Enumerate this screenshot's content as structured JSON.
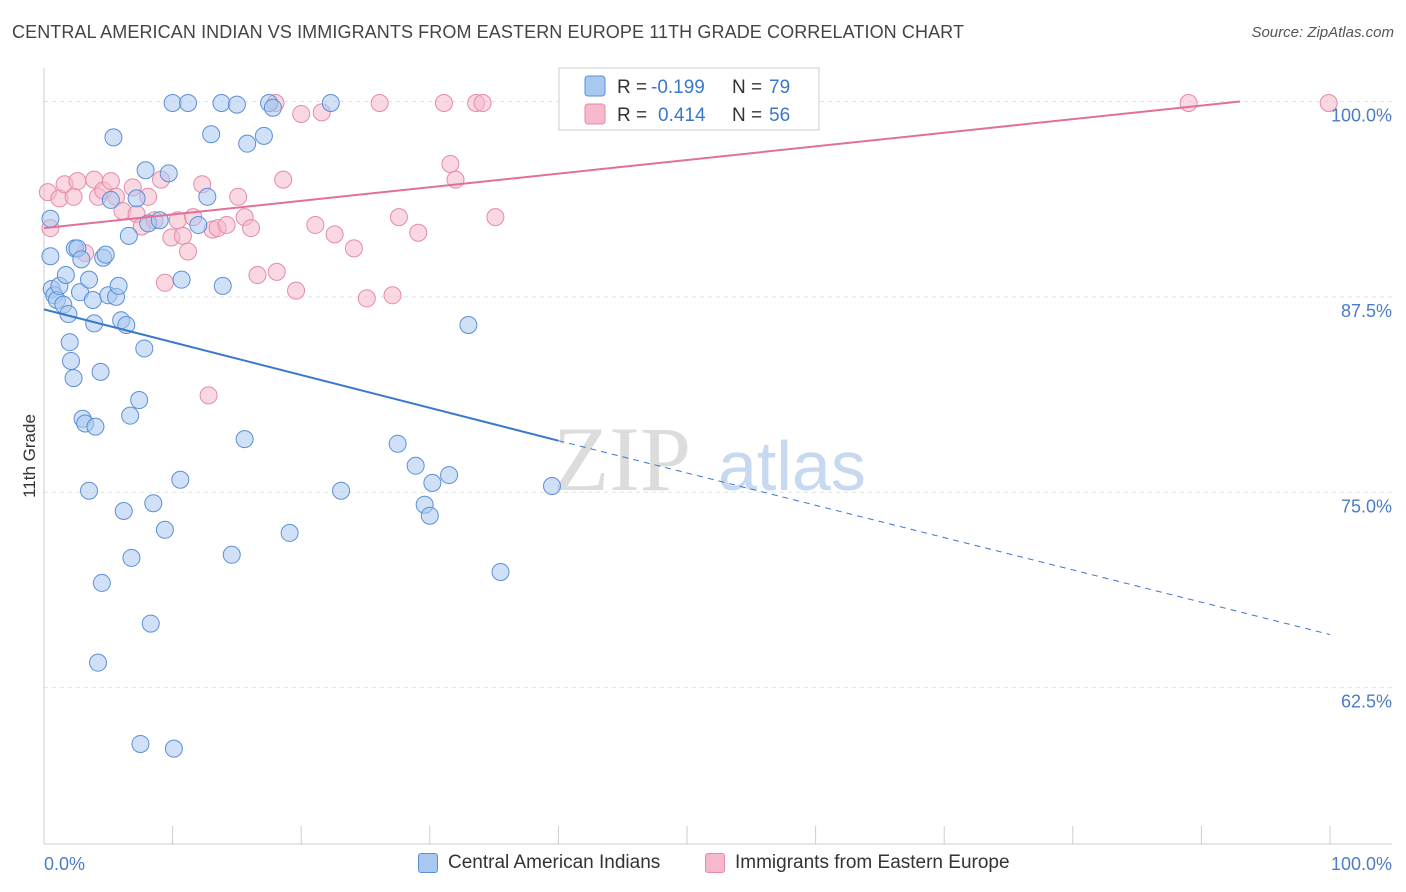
{
  "header": {
    "title": "CENTRAL AMERICAN INDIAN VS IMMIGRANTS FROM EASTERN EUROPE 11TH GRADE CORRELATION CHART",
    "source": "Source: ZipAtlas.com"
  },
  "watermark": {
    "part1": "ZIP",
    "part2": "atlas"
  },
  "legend_box": {
    "rows": [
      {
        "r_label": "R =",
        "r_value": "-0.199",
        "n_label": "N =",
        "n_value": "79"
      },
      {
        "r_label": "R =",
        "r_value": "0.414",
        "n_label": "N =",
        "n_value": "56"
      }
    ]
  },
  "bottom_legend": {
    "items": [
      "Central American Indians",
      "Immigrants from Eastern Europe"
    ]
  },
  "colors": {
    "blue_fill": "#a9c8f0",
    "blue_stroke": "#5b8fd6",
    "blue_line": "#3a78cc",
    "pink_fill": "#f6b8cb",
    "pink_stroke": "#e58aa8",
    "pink_line": "#e0709a",
    "axis_text": "#4a7cc7"
  },
  "chart_data": {
    "type": "scatter",
    "title": "CENTRAL AMERICAN INDIAN VS IMMIGRANTS FROM EASTERN EUROPE 11TH GRADE CORRELATION CHART",
    "xlabel": "",
    "ylabel": "11th Grade",
    "xlim": [
      0,
      100
    ],
    "ylim": [
      52.5,
      101.5
    ],
    "x_tick_labels": [
      "0.0%",
      "100.0%"
    ],
    "y_ticks": [
      62.5,
      75.0,
      87.5,
      100.0
    ],
    "y_tick_labels": [
      "62.5%",
      "75.0%",
      "87.5%",
      "100.0%"
    ],
    "grid": true,
    "legend_position": "top-center",
    "series": [
      {
        "name": "Central American Indians",
        "color": "#a9c8f0",
        "r": -0.199,
        "n": 79,
        "trend": {
          "x0": 0,
          "y0": 86.7,
          "x1": 40,
          "y1": 78.3,
          "dashed_to_x": 100,
          "dashed_to_y": 65.9
        },
        "points": [
          [
            0.5,
            92.5
          ],
          [
            0.5,
            90.1
          ],
          [
            0.6,
            88.0
          ],
          [
            0.8,
            87.6
          ],
          [
            1.0,
            87.3
          ],
          [
            1.2,
            88.2
          ],
          [
            1.5,
            87.0
          ],
          [
            1.7,
            88.9
          ],
          [
            1.9,
            86.4
          ],
          [
            2.0,
            84.6
          ],
          [
            2.1,
            83.4
          ],
          [
            2.3,
            82.3
          ],
          [
            2.4,
            90.6
          ],
          [
            2.6,
            90.6
          ],
          [
            2.8,
            87.8
          ],
          [
            2.9,
            89.9
          ],
          [
            3.0,
            79.7
          ],
          [
            3.2,
            79.4
          ],
          [
            3.5,
            88.6
          ],
          [
            3.5,
            75.1
          ],
          [
            3.8,
            87.3
          ],
          [
            3.9,
            85.8
          ],
          [
            4.0,
            79.2
          ],
          [
            4.2,
            64.1
          ],
          [
            4.4,
            82.7
          ],
          [
            4.5,
            69.2
          ],
          [
            4.6,
            90.0
          ],
          [
            4.8,
            90.2
          ],
          [
            5.0,
            87.6
          ],
          [
            5.2,
            93.7
          ],
          [
            5.4,
            97.7
          ],
          [
            5.6,
            87.5
          ],
          [
            5.8,
            88.2
          ],
          [
            6.0,
            86.0
          ],
          [
            6.2,
            73.8
          ],
          [
            6.4,
            85.7
          ],
          [
            6.6,
            91.4
          ],
          [
            6.7,
            79.9
          ],
          [
            6.8,
            70.8
          ],
          [
            7.2,
            93.8
          ],
          [
            7.4,
            80.9
          ],
          [
            7.5,
            58.9
          ],
          [
            7.8,
            84.2
          ],
          [
            7.9,
            95.6
          ],
          [
            8.1,
            92.2
          ],
          [
            8.3,
            66.6
          ],
          [
            8.5,
            74.3
          ],
          [
            9.0,
            92.4
          ],
          [
            9.4,
            72.6
          ],
          [
            9.7,
            95.4
          ],
          [
            10.0,
            99.9
          ],
          [
            10.1,
            58.6
          ],
          [
            10.6,
            75.8
          ],
          [
            10.7,
            88.6
          ],
          [
            11.2,
            99.9
          ],
          [
            12.0,
            92.1
          ],
          [
            12.7,
            93.9
          ],
          [
            13.0,
            97.9
          ],
          [
            13.8,
            99.9
          ],
          [
            13.9,
            88.2
          ],
          [
            14.6,
            71.0
          ],
          [
            15.6,
            78.4
          ],
          [
            15.8,
            97.3
          ],
          [
            17.1,
            97.8
          ],
          [
            17.5,
            99.9
          ],
          [
            17.8,
            99.6
          ],
          [
            19.1,
            72.4
          ],
          [
            22.3,
            99.9
          ],
          [
            23.1,
            75.1
          ],
          [
            27.5,
            78.1
          ],
          [
            28.9,
            76.7
          ],
          [
            29.6,
            74.2
          ],
          [
            30.0,
            73.5
          ],
          [
            30.2,
            75.6
          ],
          [
            31.5,
            76.1
          ],
          [
            33.0,
            85.7
          ],
          [
            35.5,
            69.9
          ],
          [
            39.5,
            75.4
          ],
          [
            15.0,
            99.8
          ]
        ]
      },
      {
        "name": "Immigrants from Eastern Europe",
        "color": "#f6b8cb",
        "r": 0.414,
        "n": 56,
        "trend": {
          "x0": 0,
          "y0": 91.9,
          "x1": 93,
          "y1": 100.0
        },
        "points": [
          [
            0.3,
            94.2
          ],
          [
            0.5,
            91.9
          ],
          [
            1.2,
            93.8
          ],
          [
            1.6,
            94.7
          ],
          [
            2.3,
            93.9
          ],
          [
            2.6,
            94.9
          ],
          [
            3.2,
            90.3
          ],
          [
            3.9,
            95.0
          ],
          [
            4.2,
            93.9
          ],
          [
            4.6,
            94.3
          ],
          [
            5.2,
            94.9
          ],
          [
            5.6,
            93.9
          ],
          [
            6.1,
            93.0
          ],
          [
            6.9,
            94.5
          ],
          [
            7.2,
            92.8
          ],
          [
            7.6,
            92.0
          ],
          [
            8.1,
            93.9
          ],
          [
            8.6,
            92.4
          ],
          [
            9.1,
            95.0
          ],
          [
            9.4,
            88.4
          ],
          [
            9.9,
            91.3
          ],
          [
            10.4,
            92.4
          ],
          [
            10.8,
            91.4
          ],
          [
            11.2,
            90.4
          ],
          [
            11.6,
            92.6
          ],
          [
            12.3,
            94.7
          ],
          [
            12.8,
            81.2
          ],
          [
            13.1,
            91.8
          ],
          [
            13.5,
            91.9
          ],
          [
            14.2,
            92.1
          ],
          [
            15.1,
            93.9
          ],
          [
            15.6,
            92.6
          ],
          [
            16.1,
            91.9
          ],
          [
            16.6,
            88.9
          ],
          [
            18.1,
            89.1
          ],
          [
            18.6,
            95.0
          ],
          [
            19.6,
            87.9
          ],
          [
            20.0,
            99.2
          ],
          [
            21.1,
            92.1
          ],
          [
            21.6,
            99.3
          ],
          [
            22.6,
            91.5
          ],
          [
            24.1,
            90.6
          ],
          [
            25.1,
            87.4
          ],
          [
            26.1,
            99.9
          ],
          [
            27.1,
            87.6
          ],
          [
            27.6,
            92.6
          ],
          [
            29.1,
            91.6
          ],
          [
            31.1,
            99.9
          ],
          [
            31.6,
            96.0
          ],
          [
            32.0,
            95.0
          ],
          [
            33.6,
            99.9
          ],
          [
            34.1,
            99.9
          ],
          [
            35.1,
            92.6
          ],
          [
            89.0,
            99.9
          ],
          [
            99.9,
            99.9
          ],
          [
            18.0,
            99.9
          ]
        ]
      }
    ]
  }
}
